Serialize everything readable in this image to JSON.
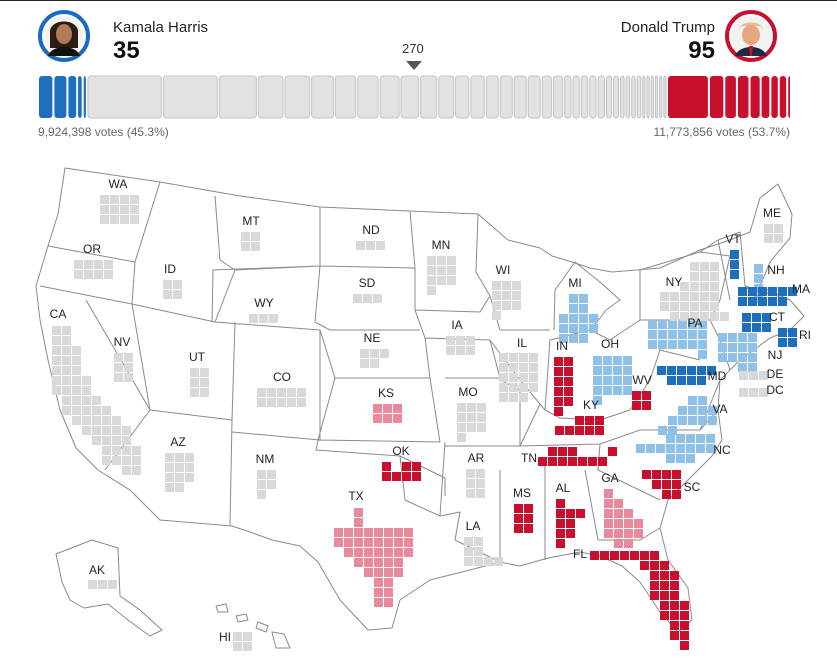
{
  "colors": {
    "dem_solid": "#1f6fbf",
    "dem_lean": "#8fc1e8",
    "rep_solid": "#c8102e",
    "rep_lean": "#e88a9c",
    "uncalled": "#d9d9d9",
    "state_stroke": "#8a8a8a",
    "harris_ring": "#1a6cc3",
    "trump_ring": "#c8102e"
  },
  "header": {
    "harris": {
      "name": "Kamala Harris",
      "electoral_votes": "35",
      "popular_votes": "9,924,398 votes (45.3%)"
    },
    "trump": {
      "name": "Donald Trump",
      "electoral_votes": "95",
      "popular_votes": "11,773,856 votes (53.7%)"
    },
    "target_label": "270",
    "target_icon": "triangle-down-icon",
    "total_electoral_votes": 538
  },
  "states": [
    {
      "abbr": "WA",
      "status": "uncalled",
      "ev": 12
    },
    {
      "abbr": "OR",
      "status": "uncalled",
      "ev": 8
    },
    {
      "abbr": "CA",
      "status": "uncalled",
      "ev": 54
    },
    {
      "abbr": "NV",
      "status": "uncalled",
      "ev": 6
    },
    {
      "abbr": "ID",
      "status": "uncalled",
      "ev": 4
    },
    {
      "abbr": "MT",
      "status": "uncalled",
      "ev": 4
    },
    {
      "abbr": "WY",
      "status": "uncalled",
      "ev": 3
    },
    {
      "abbr": "UT",
      "status": "uncalled",
      "ev": 6
    },
    {
      "abbr": "AZ",
      "status": "uncalled",
      "ev": 11
    },
    {
      "abbr": "CO",
      "status": "uncalled",
      "ev": 10
    },
    {
      "abbr": "NM",
      "status": "uncalled",
      "ev": 5
    },
    {
      "abbr": "ND",
      "status": "uncalled",
      "ev": 3
    },
    {
      "abbr": "SD",
      "status": "uncalled",
      "ev": 3
    },
    {
      "abbr": "NE",
      "status": "uncalled",
      "ev": 5
    },
    {
      "abbr": "KS",
      "status": "rep_lean",
      "ev": 6
    },
    {
      "abbr": "OK",
      "status": "rep_solid",
      "ev": 7
    },
    {
      "abbr": "TX",
      "status": "rep_lean",
      "ev": 40
    },
    {
      "abbr": "MN",
      "status": "uncalled",
      "ev": 10
    },
    {
      "abbr": "IA",
      "status": "uncalled",
      "ev": 6
    },
    {
      "abbr": "MO",
      "status": "uncalled",
      "ev": 10
    },
    {
      "abbr": "AR",
      "status": "uncalled",
      "ev": 6
    },
    {
      "abbr": "LA",
      "status": "uncalled",
      "ev": 8
    },
    {
      "abbr": "WI",
      "status": "uncalled",
      "ev": 10
    },
    {
      "abbr": "IL",
      "status": "uncalled",
      "ev": 19
    },
    {
      "abbr": "MI",
      "status": "dem_lean",
      "ev": 15
    },
    {
      "abbr": "IN",
      "status": "rep_solid",
      "ev": 11
    },
    {
      "abbr": "OH",
      "status": "dem_lean",
      "ev": 17
    },
    {
      "abbr": "KY",
      "status": "rep_solid",
      "ev": 8
    },
    {
      "abbr": "TN",
      "status": "rep_solid",
      "ev": 11
    },
    {
      "abbr": "MS",
      "status": "rep_solid",
      "ev": 6
    },
    {
      "abbr": "AL",
      "status": "rep_solid",
      "ev": 9
    },
    {
      "abbr": "GA",
      "status": "rep_lean",
      "ev": 16
    },
    {
      "abbr": "FL",
      "status": "rep_solid",
      "ev": 30
    },
    {
      "abbr": "SC",
      "status": "rep_solid",
      "ev": 9
    },
    {
      "abbr": "NC",
      "status": "dem_lean",
      "ev": 16
    },
    {
      "abbr": "VA",
      "status": "dem_lean",
      "ev": 13
    },
    {
      "abbr": "WV",
      "status": "rep_solid",
      "ev": 4
    },
    {
      "abbr": "PA",
      "status": "dem_lean",
      "ev": 19
    },
    {
      "abbr": "NY",
      "status": "uncalled",
      "ev": 28
    },
    {
      "abbr": "VT",
      "status": "dem_solid",
      "ev": 3
    },
    {
      "abbr": "NH",
      "status": "dem_lean",
      "ev": 4
    },
    {
      "abbr": "ME",
      "status": "uncalled",
      "ev": 4
    },
    {
      "abbr": "MA",
      "status": "dem_solid",
      "ev": 11
    },
    {
      "abbr": "RI",
      "status": "dem_solid",
      "ev": 4
    },
    {
      "abbr": "CT",
      "status": "dem_solid",
      "ev": 7
    },
    {
      "abbr": "NJ",
      "status": "dem_lean",
      "ev": 14
    },
    {
      "abbr": "DE",
      "status": "uncalled",
      "ev": 3
    },
    {
      "abbr": "MD",
      "status": "dem_solid",
      "ev": 10
    },
    {
      "abbr": "DC",
      "status": "uncalled",
      "ev": 3
    },
    {
      "abbr": "AK",
      "status": "uncalled",
      "ev": 3
    },
    {
      "abbr": "HI",
      "status": "uncalled",
      "ev": 4
    }
  ]
}
